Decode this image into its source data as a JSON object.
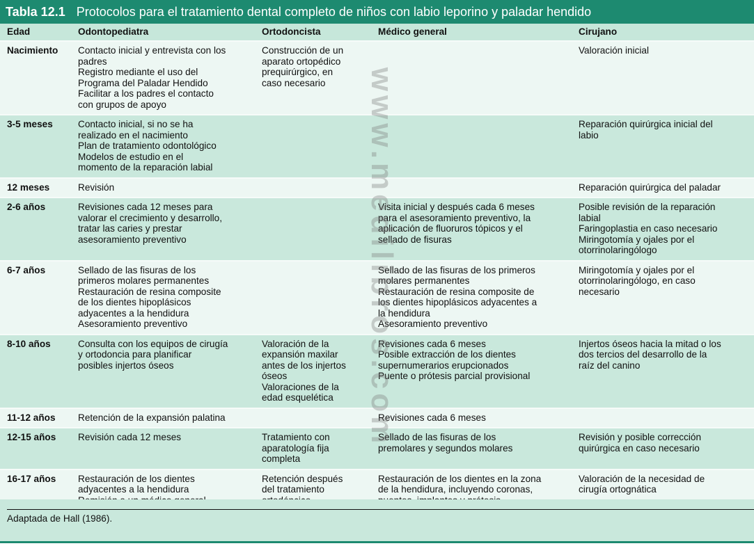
{
  "title": {
    "number": "Tabla 12.1",
    "text": "Protocolos para el tratamiento dental completo de niños con labio leporino y paladar hendido"
  },
  "columns": [
    "Edad",
    "Odontopediatra",
    "Ortodoncista",
    "Médico general",
    "Cirujano"
  ],
  "rows": [
    {
      "age": "Nacimiento",
      "odonto": "Contacto inicial y entrevista con los\npadres\nRegistro mediante el uso del\nPrograma del Paladar Hendido\nFacilitar a los padres el contacto\ncon grupos de apoyo",
      "orto": "Construcción de un\naparato ortopédico\nprequirúrgico, en\ncaso necesario",
      "medico": "",
      "cirujano": "Valoración inicial"
    },
    {
      "age": "3-5 meses",
      "odonto": "Contacto inicial, si no se ha\nrealizado en el nacimiento\nPlan de tratamiento odontológico\nModelos de estudio en el\nmomento de la reparación labial",
      "orto": "",
      "medico": "",
      "cirujano": "Reparación quirúrgica inicial del\nlabio"
    },
    {
      "age": "12 meses",
      "odonto": "Revisión",
      "orto": "",
      "medico": "",
      "cirujano": "Reparación quirúrgica del paladar"
    },
    {
      "age": "2-6 años",
      "odonto": "Revisiones cada 12 meses para\nvalorar el crecimiento y desarrollo,\ntratar las caries y prestar\nasesoramiento preventivo",
      "orto": "",
      "medico": "Visita inicial y después cada 6 meses\npara el asesoramiento preventivo, la\naplicación de fluoruros tópicos y el\nsellado de fisuras",
      "cirujano": "Posible revisión de la reparación\nlabial\nFaringoplastia en caso necesario\nMiringotomía y ojales por el\notorrinolaringólogo"
    },
    {
      "age": "6-7 años",
      "odonto": "Sellado de las fisuras de los\nprimeros molares permanentes\nRestauración de resina composite\nde los dientes hipoplásicos\nadyacentes a la hendidura\nAsesoramiento preventivo",
      "orto": "",
      "medico": "Sellado de las fisuras de los primeros\nmolares permanentes\nRestauración de resina composite de\nlos dientes hipoplásicos adyacentes a\nla hendidura\nAsesoramiento preventivo",
      "cirujano": "Miringotomía y ojales por el\notorrinolaringólogo, en caso\nnecesario"
    },
    {
      "age": "8-10 años",
      "odonto": "Consulta con los equipos de cirugía\ny ortodoncia para planificar\nposibles injertos óseos",
      "orto": "Valoración de la\nexpansión maxilar\nantes de los injertos\nóseos\nValoraciones de la\nedad esquelética",
      "medico": "Revisiones cada 6 meses\nPosible extracción de los dientes\nsupernumerarios erupcionados\nPuente o prótesis parcial provisional",
      "cirujano": "Injertos óseos hacia la mitad o los\ndos tercios del desarrollo de la\nraíz del canino"
    },
    {
      "age": "11-12 años",
      "odonto": "Retención de la expansión palatina",
      "orto": "",
      "medico": "Revisiones cada 6 meses",
      "cirujano": ""
    },
    {
      "age": "12-15 años",
      "odonto": "Revisión cada 12 meses",
      "orto": "Tratamiento con\naparatología fija\ncompleta",
      "medico": "Sellado de las fisuras de los\npremolares y segundos molares",
      "cirujano": "Revisión y posible corrección\nquirúrgica en caso necesario"
    },
    {
      "age": "16-17 años",
      "odonto": "Restauración de los dientes\nadyacentes a la hendidura\nRemisión a un médico general",
      "orto": "Retención después\ndel tratamiento\nortodóncico",
      "medico": "Restauración de los dientes en la zona\nde la hendidura, incluyendo coronas,\npuentes, implantes y prótesis",
      "cirujano": "Valoración de la necesidad de\ncirugía ortognática"
    }
  ],
  "footnote": "Adaptada de Hall (1986).",
  "watermark": "www.medilibros.com",
  "colors": {
    "title_bar": "#1d8a70",
    "header_row": "#c6e7da",
    "row_light": "#edf7f3",
    "row_dark": "#c9e8dc"
  }
}
